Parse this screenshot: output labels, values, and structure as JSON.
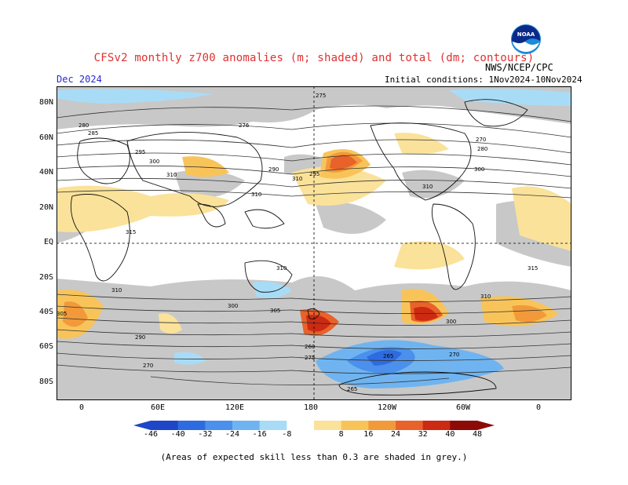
{
  "header": {
    "title": "CFSv2 monthly z700 anomalies (m; shaded) and total (dm; contours)",
    "month": "Dec 2024",
    "initial_conditions": "Initial conditions: 1Nov2024-10Nov2024",
    "agency": "NWS/NCEP/CPC",
    "logo_text": "NOAA"
  },
  "map": {
    "lat_labels": [
      "80N",
      "60N",
      "40N",
      "20N",
      "EQ",
      "20S",
      "40S",
      "60S",
      "80S"
    ],
    "lon_labels": [
      "0",
      "60E",
      "120E",
      "180",
      "120W",
      "60W",
      "0"
    ],
    "contour_labels": [
      "275",
      "276",
      "280",
      "285",
      "290",
      "295",
      "300",
      "305",
      "310",
      "315",
      "270",
      "265",
      "260"
    ],
    "skill_color": "#c8c8c8"
  },
  "colorbar": {
    "labels": [
      "-46",
      "-40",
      "-32",
      "-24",
      "-16",
      "-8",
      "8",
      "16",
      "24",
      "32",
      "40",
      "48"
    ],
    "colors": [
      "#1e46c8",
      "#2f6be0",
      "#4a90ec",
      "#6fb4f0",
      "#a8dcf6",
      "#ffffff",
      "#fbe29a",
      "#f8c45a",
      "#f29a3a",
      "#e8622a",
      "#cc2a12",
      "#8c0a08"
    ]
  },
  "footer": {
    "note": "(Areas of expected skill less than 0.3 are shaded in grey.)"
  }
}
